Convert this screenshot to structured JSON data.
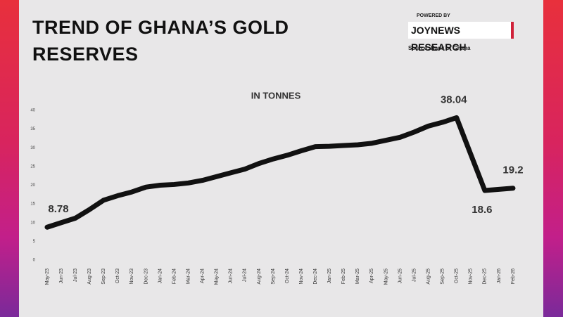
{
  "chart_data": {
    "type": "line",
    "title": "TREND OF GHANA’S GOLD RESERVES",
    "subtitle": "IN TONNES",
    "powered_by": "POWERED BY",
    "brand": "JOYNEWS RESEARCH",
    "source": "Source: Bank of Ghana",
    "categories": [
      "May-23",
      "Jun-23",
      "Jul-23",
      "Aug-23",
      "Sep-23",
      "Oct-23",
      "Nov-23",
      "Dec-23",
      "Jan-24",
      "Feb-24",
      "Mar-24",
      "Apr-24",
      "May-24",
      "Jun-24",
      "Jul-24",
      "Aug-24",
      "Sep-24",
      "Oct-24",
      "Nov-24",
      "Dec-24",
      "Jan-25",
      "Feb-25",
      "Mar-25",
      "Apr-25",
      "May-25",
      "Jun-25",
      "Jul-25",
      "Aug-25",
      "Sep-25",
      "Oct-25",
      "Nov-25",
      "Dec-25",
      "Jan-26",
      "Feb-26"
    ],
    "values": [
      8.78,
      10,
      11.2,
      13.5,
      16,
      17.2,
      18.2,
      19.5,
      20,
      20.2,
      20.6,
      21.3,
      22.3,
      23.3,
      24.3,
      25.8,
      27,
      28,
      29.2,
      30.3,
      30.4,
      30.6,
      30.8,
      31.2,
      32,
      32.8,
      34.2,
      35.8,
      36.8,
      38.04,
      28.3,
      18.6,
      18.9,
      19.2
    ],
    "value_labels": [
      "8.78",
      null,
      null,
      null,
      null,
      null,
      null,
      null,
      null,
      null,
      null,
      null,
      null,
      null,
      null,
      null,
      null,
      null,
      null,
      null,
      null,
      null,
      null,
      null,
      null,
      null,
      null,
      null,
      null,
      "38.04",
      null,
      "18.6",
      null,
      "19.2"
    ],
    "color": "#111111",
    "ylim": [
      0,
      40
    ],
    "yticks": [
      0,
      5,
      10,
      15,
      20,
      25,
      30,
      35,
      40
    ],
    "grid": false
  }
}
